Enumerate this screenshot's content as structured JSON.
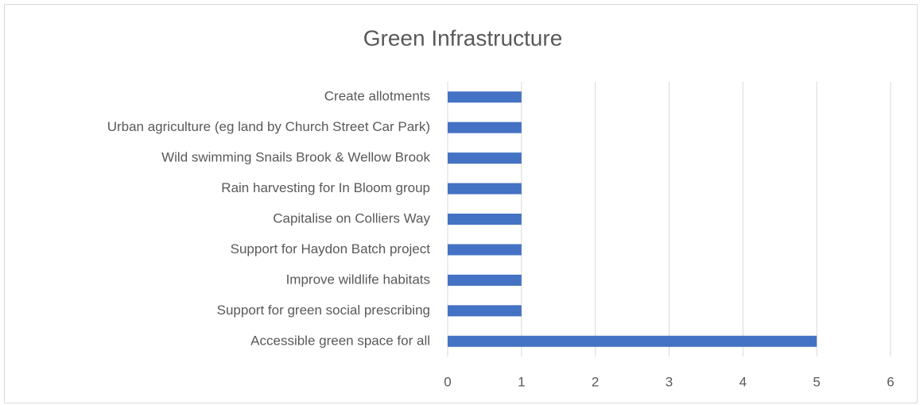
{
  "chart_data": {
    "type": "bar",
    "orientation": "horizontal",
    "title": "Green Infrastructure",
    "categories": [
      "Create allotments",
      "Urban agriculture (eg land by Church Street Car Park)",
      "Wild swimming Snails Brook & Wellow Brook",
      "Rain harvesting for In Bloom group",
      "Capitalise on Colliers Way",
      "Support for Haydon Batch project",
      "Improve wildlife habitats",
      "Support for green social prescribing",
      "Accessible green space for all"
    ],
    "values": [
      1,
      1,
      1,
      1,
      1,
      1,
      1,
      1,
      5
    ],
    "color": "#4472c4",
    "xlim": [
      0,
      6
    ],
    "xticks": [
      0,
      1,
      2,
      3,
      4,
      5,
      6
    ],
    "grid": true
  }
}
